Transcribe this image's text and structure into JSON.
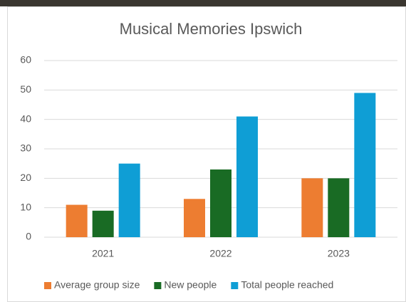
{
  "chart_data": {
    "type": "bar",
    "title": "Musical Memories Ipswich",
    "categories": [
      "2021",
      "2022",
      "2023"
    ],
    "series": [
      {
        "name": "Average group size",
        "color": "#ed7d31",
        "values": [
          11,
          13,
          20
        ]
      },
      {
        "name": "New people",
        "color": "#196b24",
        "values": [
          9,
          23,
          20
        ]
      },
      {
        "name": "Total people reached",
        "color": "#0f9ed5",
        "values": [
          25,
          41,
          49
        ]
      }
    ],
    "ylim": [
      0,
      60
    ],
    "yticks": [
      0,
      10,
      20,
      30,
      40,
      50,
      60
    ],
    "grid": true,
    "legend": "bottom"
  }
}
